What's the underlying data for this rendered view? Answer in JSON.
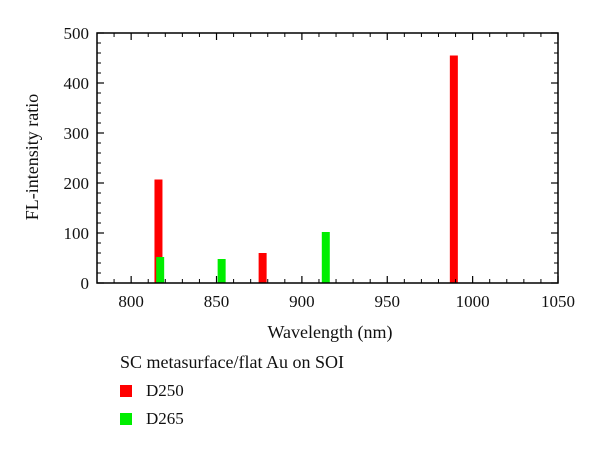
{
  "chart_data": {
    "type": "bar",
    "xlabel": "Wavelength (nm)",
    "ylabel": "FL-intensity ratio",
    "xlim": [
      780,
      1050
    ],
    "ylim": [
      0,
      500
    ],
    "x_ticks": [
      800,
      850,
      900,
      950,
      1000,
      1050
    ],
    "y_ticks": [
      0,
      100,
      200,
      300,
      400,
      500
    ],
    "legend_title": "SC metasurface/flat Au on SOI",
    "legend_position": "below",
    "series": [
      {
        "name": "D250",
        "color": "#ff0000",
        "x": [
          816,
          877,
          989
        ],
        "values": [
          207,
          60,
          455
        ]
      },
      {
        "name": "D265",
        "color": "#00ee00",
        "x": [
          817,
          853,
          914
        ],
        "values": [
          52,
          48,
          102
        ]
      }
    ]
  }
}
